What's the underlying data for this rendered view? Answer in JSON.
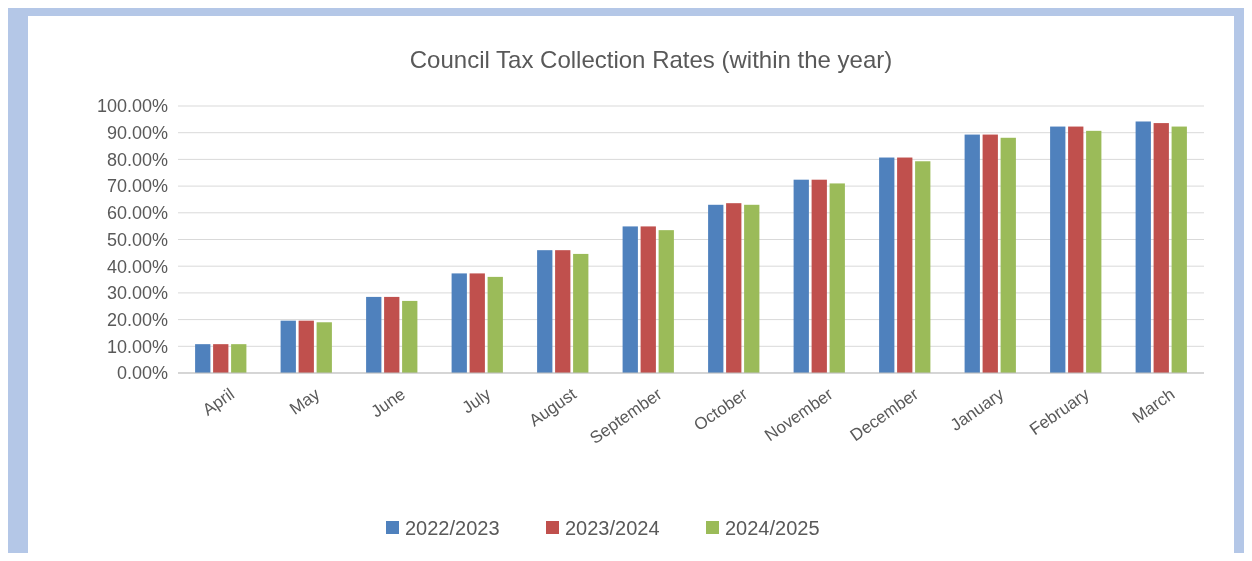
{
  "chart_data": {
    "type": "bar",
    "title": "Council Tax Collection Rates (within the year)",
    "categories": [
      "April",
      "May",
      "June",
      "July",
      "August",
      "September",
      "October",
      "November",
      "December",
      "January",
      "February",
      "March"
    ],
    "series": [
      {
        "name": "2022/2023",
        "color": "#4f81bd",
        "values": [
          10.8,
          19.6,
          28.5,
          37.3,
          46,
          54.9,
          63,
          72.4,
          80.7,
          89.3,
          92.3,
          94.2
        ]
      },
      {
        "name": "2023/2024",
        "color": "#c0504d",
        "values": [
          10.8,
          19.6,
          28.5,
          37.3,
          46,
          54.9,
          63.6,
          72.4,
          80.7,
          89.3,
          92.3,
          93.6
        ]
      },
      {
        "name": "2024/2025",
        "color": "#9bbb59",
        "values": [
          10.8,
          19,
          27,
          36,
          44.6,
          53.5,
          63,
          71,
          79.3,
          88.1,
          90.7,
          92.3
        ]
      }
    ],
    "ylim": [
      0,
      100
    ],
    "yticks": [
      {
        "value": 0,
        "label": "0.00%"
      },
      {
        "value": 10,
        "label": "10.00%"
      },
      {
        "value": 20,
        "label": "20.00%"
      },
      {
        "value": 30,
        "label": "30.00%"
      },
      {
        "value": 40,
        "label": "40.00%"
      },
      {
        "value": 50,
        "label": "50.00%"
      },
      {
        "value": 60,
        "label": "60.00%"
      },
      {
        "value": 70,
        "label": "70.00%"
      },
      {
        "value": 80,
        "label": "80.00%"
      },
      {
        "value": 90,
        "label": "90.00%"
      },
      {
        "value": 100,
        "label": "100.00%"
      }
    ],
    "grid": "y",
    "legend": "bottom"
  }
}
